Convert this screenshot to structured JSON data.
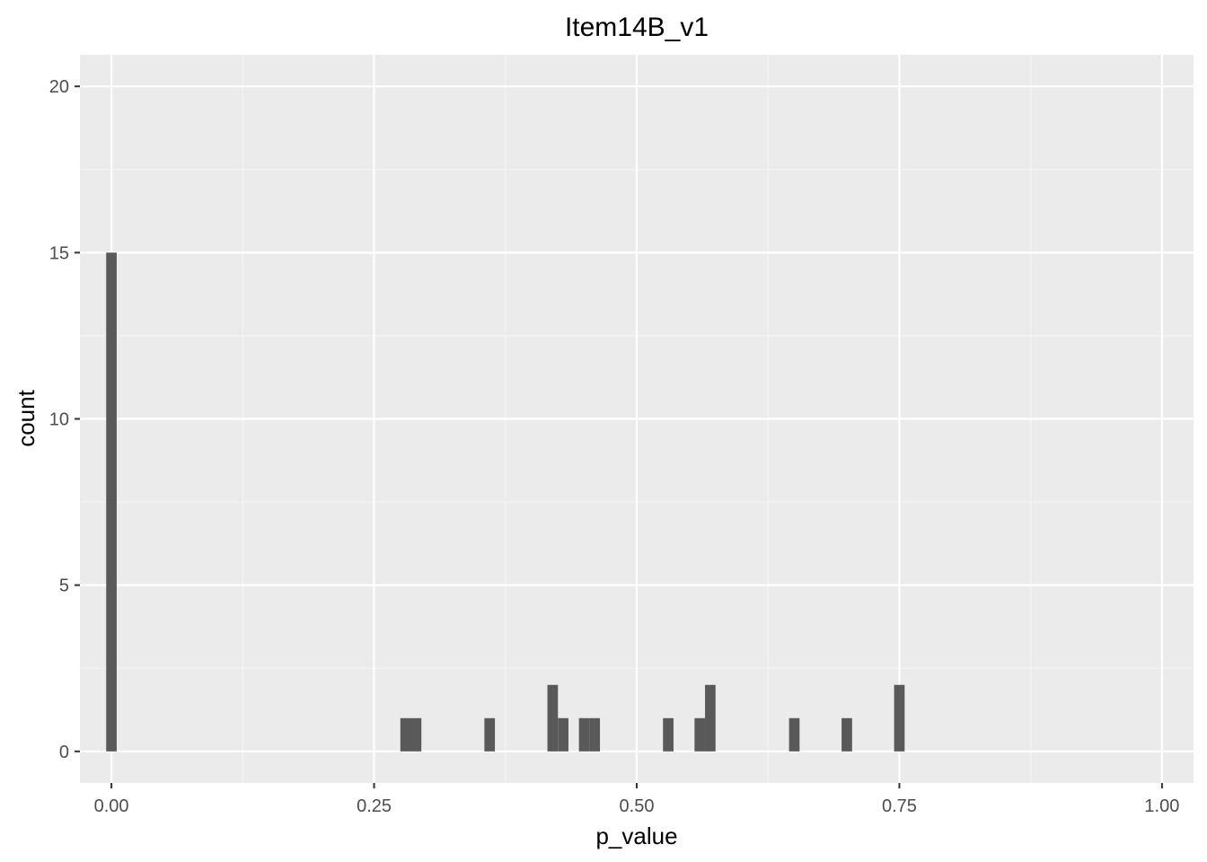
{
  "chart_data": {
    "type": "bar",
    "title": "Item14B_v1",
    "xlabel": "p_value",
    "ylabel": "count",
    "xlim": [
      -0.03,
      1.03
    ],
    "ylim": [
      -0.95,
      20.95
    ],
    "bin_width": 0.01,
    "x_ticks": [
      0.0,
      0.25,
      0.5,
      0.75,
      1.0
    ],
    "x_tick_labels": [
      "0.00",
      "0.25",
      "0.50",
      "0.75",
      "1.00"
    ],
    "y_ticks": [
      0,
      5,
      10,
      15,
      20
    ],
    "y_tick_labels": [
      "0",
      "5",
      "10",
      "15",
      "20"
    ],
    "grid": true,
    "legend": "none",
    "bins": [
      {
        "x": 0.0,
        "count": 15
      },
      {
        "x": 0.28,
        "count": 1
      },
      {
        "x": 0.29,
        "count": 1
      },
      {
        "x": 0.36,
        "count": 1
      },
      {
        "x": 0.42,
        "count": 2
      },
      {
        "x": 0.43,
        "count": 1
      },
      {
        "x": 0.45,
        "count": 1
      },
      {
        "x": 0.46,
        "count": 1
      },
      {
        "x": 0.53,
        "count": 1
      },
      {
        "x": 0.56,
        "count": 1
      },
      {
        "x": 0.57,
        "count": 2
      },
      {
        "x": 0.65,
        "count": 1
      },
      {
        "x": 0.7,
        "count": 1
      },
      {
        "x": 0.75,
        "count": 2
      }
    ],
    "colors": {
      "panel_background": "#EBEBEB",
      "grid_major": "#FFFFFF",
      "grid_minor": "#F5F5F5",
      "bar_fill": "#595959",
      "tick_color": "#333333"
    }
  }
}
